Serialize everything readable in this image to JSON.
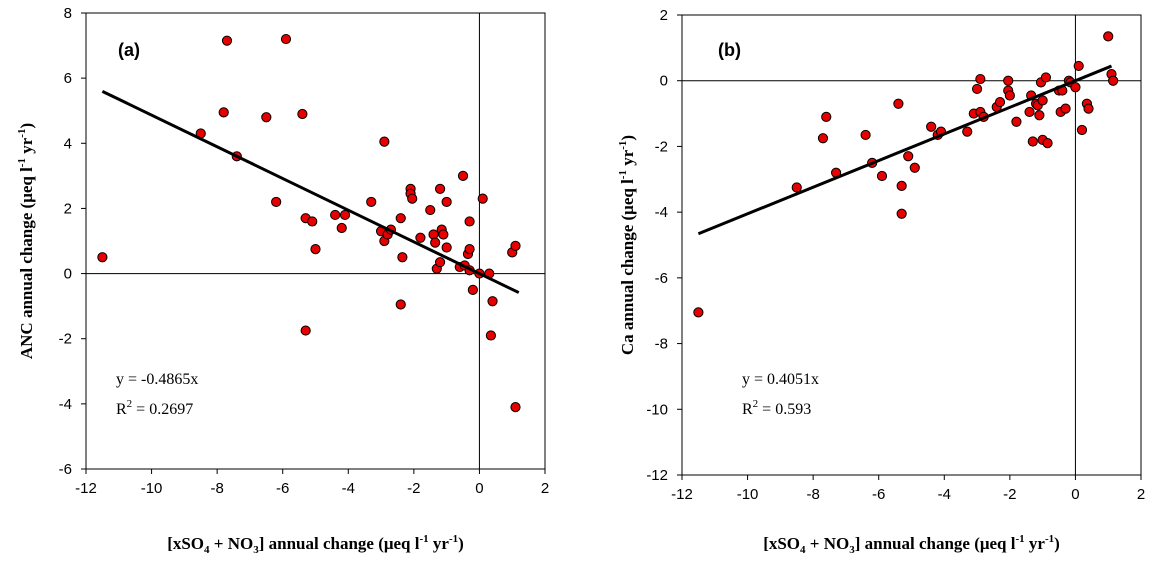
{
  "chart_data": [
    {
      "type": "scatter",
      "panel_label": "(a)",
      "xlabel": "[xSO4 + NO3] annual change (μeq l-1 yr-1)",
      "ylabel": "ANC annual change (μeq l-1 yr-1)",
      "xlabel_parts": {
        "pre": "[xSO",
        "sub1": "4",
        "mid": " + NO",
        "sub2": "3",
        "unit": "] annual change (μeq l",
        "sup1": "-1",
        "yr": " yr",
        "sup2": "-1",
        "close": ")"
      },
      "ylabel_parts": {
        "pre": "ANC annual change (μeq l",
        "sup1": "-1",
        "yr": " yr",
        "sup2": "-1",
        "close": ")"
      },
      "xlim": [
        -12,
        2
      ],
      "ylim": [
        -6,
        8
      ],
      "xticks": [
        "-12",
        "-10",
        "-8",
        "-6",
        "-4",
        "-2",
        "0",
        "2"
      ],
      "yticks": [
        "-6",
        "-4",
        "-2",
        "0",
        "2",
        "4",
        "6",
        "8"
      ],
      "equation": "y = -0.4865x",
      "r2_prefix": "R",
      "r2_sup": "2",
      "r2_value": " = 0.2697",
      "marker_color": "#e60000",
      "trendline": {
        "slope": -0.4865,
        "x_range": [
          -11.5,
          1.2
        ]
      },
      "points": [
        [
          -11.5,
          0.5
        ],
        [
          -8.5,
          4.3
        ],
        [
          -7.8,
          4.95
        ],
        [
          -7.7,
          7.15
        ],
        [
          -7.4,
          3.6
        ],
        [
          -6.5,
          4.8
        ],
        [
          -6.2,
          2.2
        ],
        [
          -5.9,
          7.2
        ],
        [
          -5.4,
          4.9
        ],
        [
          -5.3,
          1.7
        ],
        [
          -5.1,
          1.6
        ],
        [
          -5.3,
          -1.75
        ],
        [
          -5.0,
          0.75
        ],
        [
          -4.4,
          1.8
        ],
        [
          -4.2,
          1.4
        ],
        [
          -4.1,
          1.8
        ],
        [
          -3.3,
          2.2
        ],
        [
          -3.0,
          1.3
        ],
        [
          -2.9,
          4.05
        ],
        [
          -2.9,
          1.0
        ],
        [
          -2.8,
          1.2
        ],
        [
          -2.7,
          1.35
        ],
        [
          -2.4,
          1.7
        ],
        [
          -2.35,
          0.5
        ],
        [
          -2.4,
          -0.95
        ],
        [
          -2.1,
          2.6
        ],
        [
          -2.1,
          2.45
        ],
        [
          -2.05,
          2.3
        ],
        [
          -1.8,
          1.1
        ],
        [
          -1.5,
          1.95
        ],
        [
          -1.4,
          1.2
        ],
        [
          -1.35,
          0.95
        ],
        [
          -1.3,
          0.15
        ],
        [
          -1.2,
          0.35
        ],
        [
          -1.2,
          2.6
        ],
        [
          -1.15,
          1.35
        ],
        [
          -1.1,
          1.2
        ],
        [
          -1.0,
          0.8
        ],
        [
          -1.0,
          2.2
        ],
        [
          -0.6,
          0.2
        ],
        [
          -0.5,
          3.0
        ],
        [
          -0.45,
          0.25
        ],
        [
          -0.35,
          0.6
        ],
        [
          -0.3,
          0.75
        ],
        [
          -0.3,
          1.6
        ],
        [
          -0.3,
          0.1
        ],
        [
          -0.2,
          -0.5
        ],
        [
          0.0,
          0.0
        ],
        [
          0.1,
          2.3
        ],
        [
          0.3,
          0.0
        ],
        [
          0.35,
          -1.9
        ],
        [
          0.4,
          -0.85
        ],
        [
          1.0,
          0.65
        ],
        [
          1.1,
          0.85
        ],
        [
          1.1,
          -4.1
        ]
      ]
    },
    {
      "type": "scatter",
      "panel_label": "(b)",
      "xlabel": "[xSO4 + NO3] annual change (μeq l-1 yr-1)",
      "ylabel": "Ca annual change (μeq l-1 yr-1)",
      "xlabel_parts": {
        "pre": "[xSO",
        "sub1": "4",
        "mid": " + NO",
        "sub2": "3",
        "unit": "] annual change (μeq l",
        "sup1": "-1",
        "yr": " yr",
        "sup2": "-1",
        "close": ")"
      },
      "ylabel_parts": {
        "pre": "Ca annual change (μeq l",
        "sup1": "-1",
        "yr": " yr",
        "sup2": "-1",
        "close": ")"
      },
      "xlim": [
        -12,
        2
      ],
      "ylim": [
        -12,
        2
      ],
      "xticks": [
        "-12",
        "-10",
        "-8",
        "-6",
        "-4",
        "-2",
        "0",
        "2"
      ],
      "yticks": [
        "-12",
        "-10",
        "-8",
        "-6",
        "-4",
        "-2",
        "0",
        "2"
      ],
      "equation": "y = 0.4051x",
      "r2_prefix": "R",
      "r2_sup": "2",
      "r2_value": " = 0.593",
      "marker_color": "#e60000",
      "trendline": {
        "slope": 0.4051,
        "x_range": [
          -11.5,
          1.1
        ]
      },
      "points": [
        [
          -11.5,
          -7.05
        ],
        [
          -8.5,
          -3.25
        ],
        [
          -7.7,
          -1.75
        ],
        [
          -7.6,
          -1.1
        ],
        [
          -7.3,
          -2.8
        ],
        [
          -6.4,
          -1.65
        ],
        [
          -6.2,
          -2.5
        ],
        [
          -5.9,
          -2.9
        ],
        [
          -5.4,
          -0.7
        ],
        [
          -5.3,
          -3.2
        ],
        [
          -5.3,
          -4.05
        ],
        [
          -5.1,
          -2.3
        ],
        [
          -4.9,
          -2.65
        ],
        [
          -4.4,
          -1.4
        ],
        [
          -4.2,
          -1.65
        ],
        [
          -4.1,
          -1.55
        ],
        [
          -3.3,
          -1.55
        ],
        [
          -3.1,
          -1.0
        ],
        [
          -3.0,
          -0.25
        ],
        [
          -2.9,
          -0.95
        ],
        [
          -2.9,
          0.05
        ],
        [
          -2.8,
          -1.1
        ],
        [
          -2.4,
          -0.8
        ],
        [
          -2.3,
          -0.65
        ],
        [
          -2.05,
          0.0
        ],
        [
          -2.05,
          -0.3
        ],
        [
          -2.0,
          -0.45
        ],
        [
          -1.8,
          -1.25
        ],
        [
          -1.4,
          -0.95
        ],
        [
          -1.35,
          -0.45
        ],
        [
          -1.3,
          -1.85
        ],
        [
          -1.2,
          -0.7
        ],
        [
          -1.15,
          -0.75
        ],
        [
          -1.1,
          -1.05
        ],
        [
          -1.05,
          -0.05
        ],
        [
          -1.0,
          -1.8
        ],
        [
          -1.0,
          -0.6
        ],
        [
          -0.9,
          0.1
        ],
        [
          -0.85,
          -1.9
        ],
        [
          -0.5,
          -0.3
        ],
        [
          -0.45,
          -0.95
        ],
        [
          -0.4,
          -0.3
        ],
        [
          -0.3,
          -0.85
        ],
        [
          -0.2,
          0.0
        ],
        [
          -0.15,
          -0.05
        ],
        [
          0.0,
          -0.2
        ],
        [
          0.1,
          0.45
        ],
        [
          0.2,
          -1.5
        ],
        [
          0.35,
          -0.7
        ],
        [
          0.4,
          -0.85
        ],
        [
          1.0,
          1.35
        ],
        [
          1.1,
          0.2
        ],
        [
          1.15,
          0.0
        ]
      ]
    }
  ]
}
